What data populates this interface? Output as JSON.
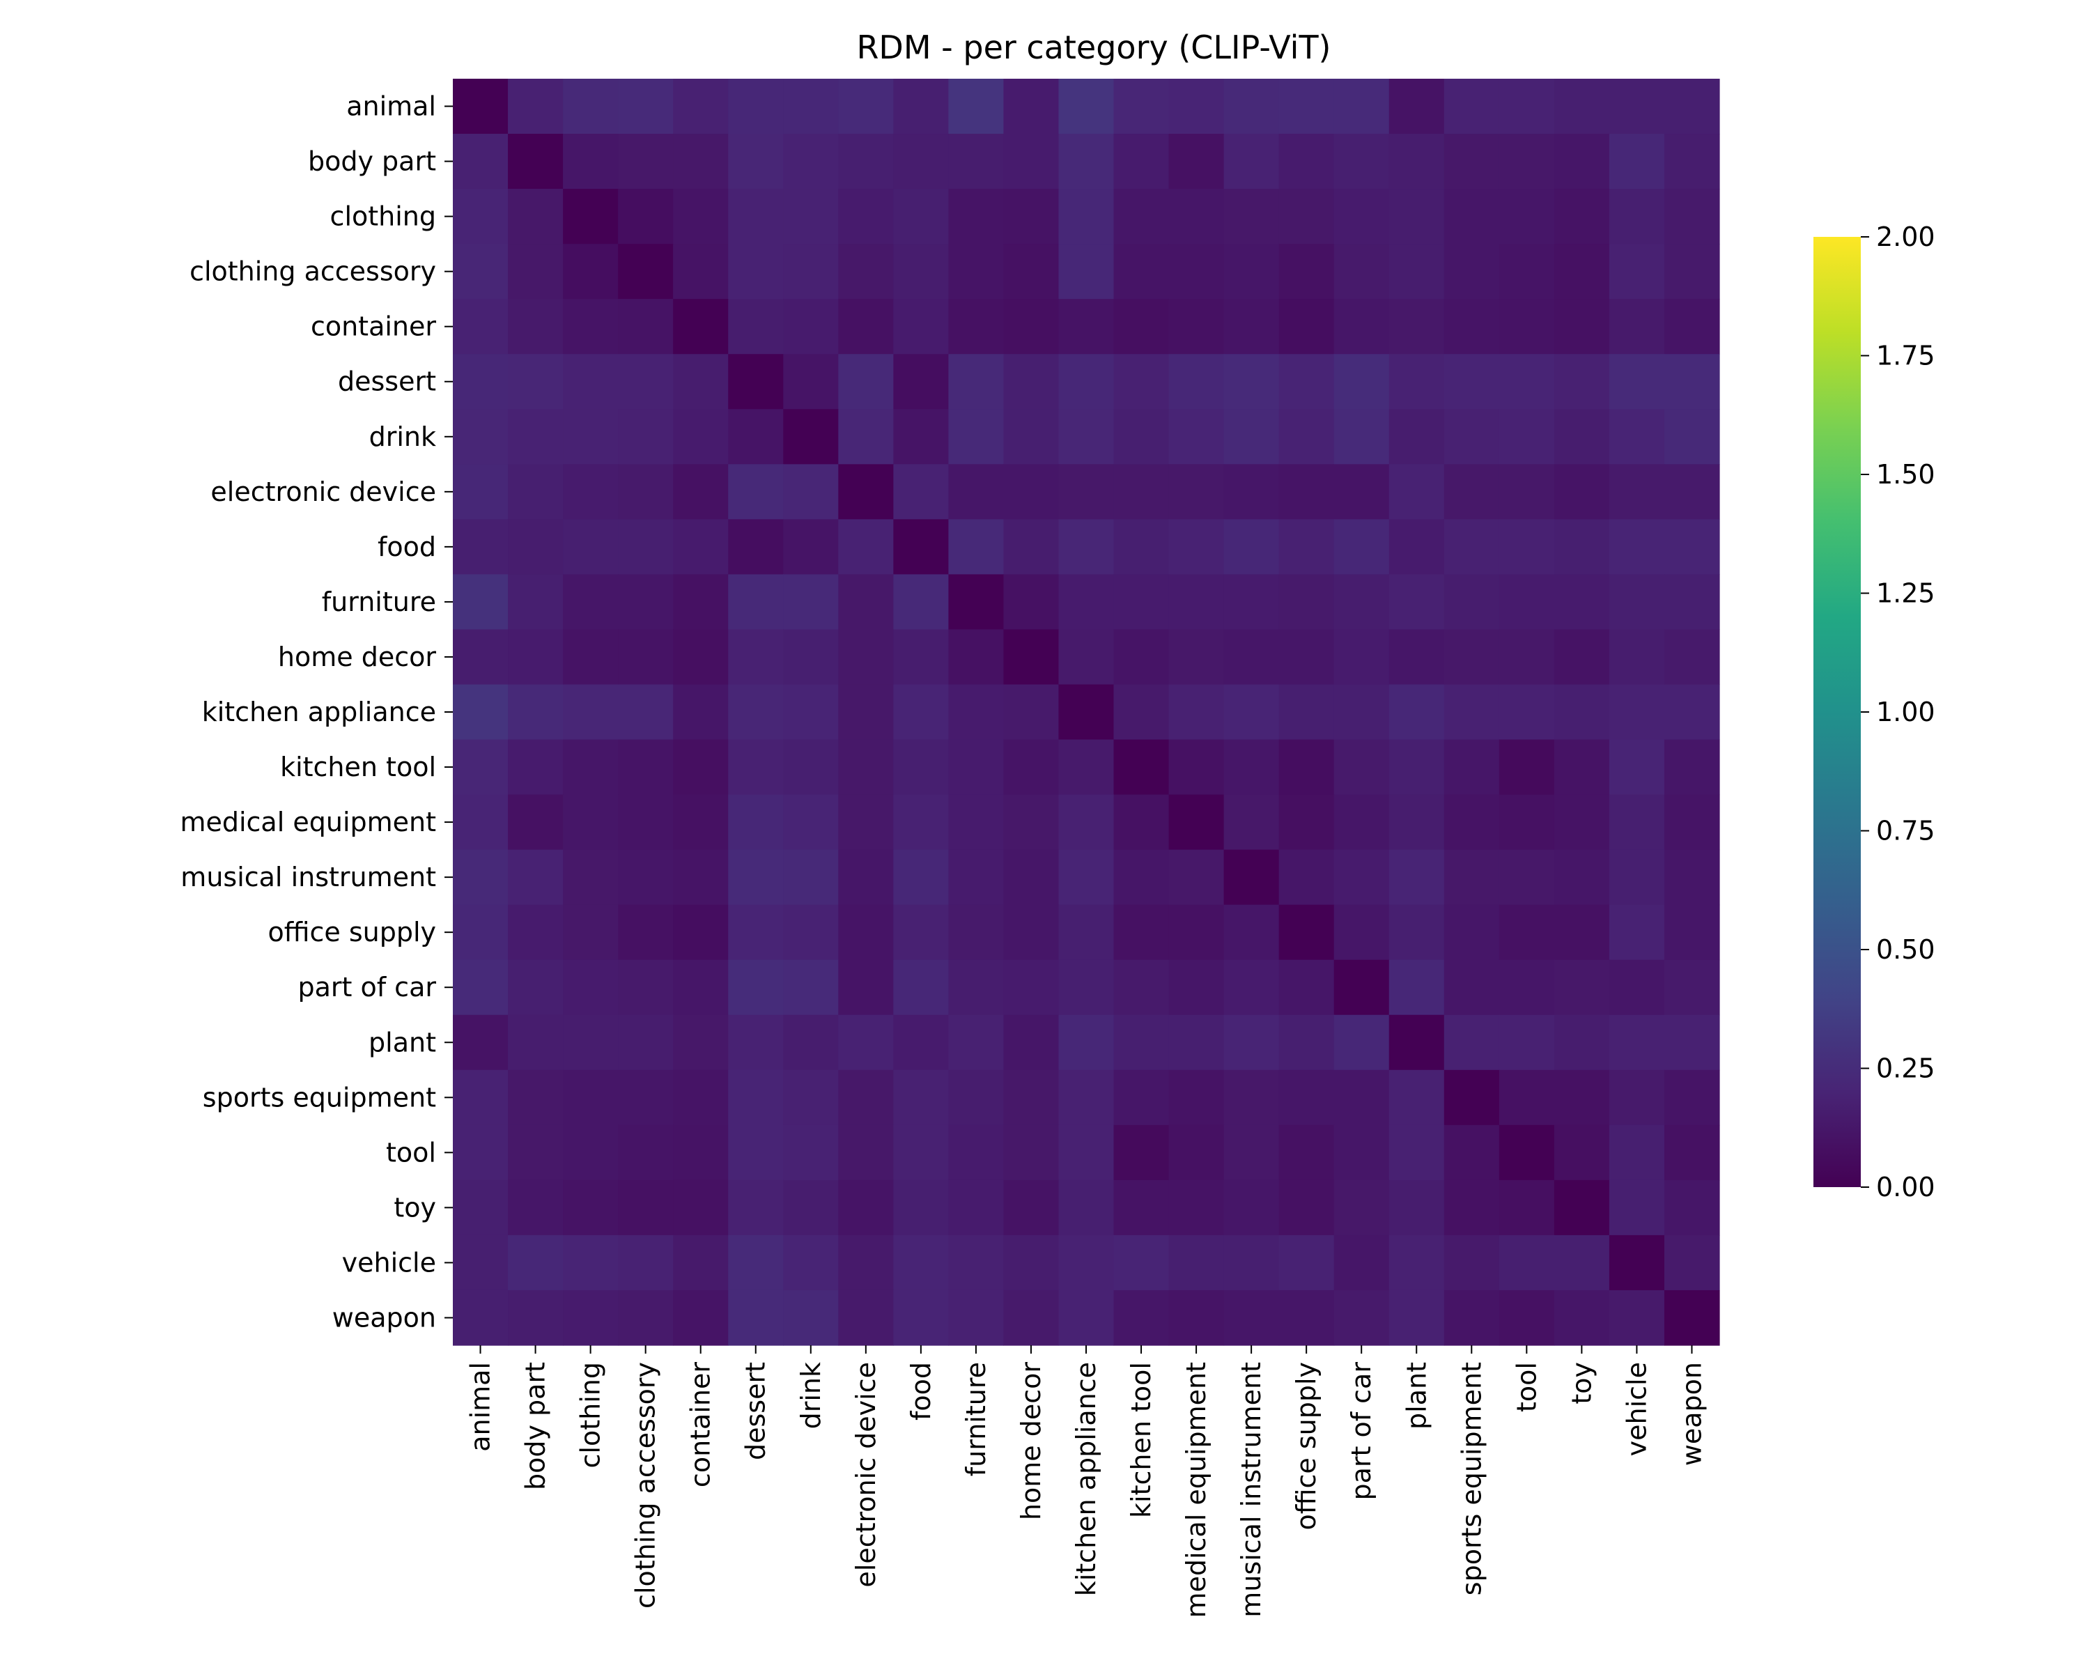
{
  "chart_data": {
    "type": "heatmap",
    "title": "RDM - per category (CLIP-ViT)",
    "xlabel": "",
    "ylabel": "",
    "colormap": "viridis",
    "vmin": 0.0,
    "vmax": 2.0,
    "colorbar_ticks": [
      "0.00",
      "0.25",
      "0.50",
      "0.75",
      "1.00",
      "1.25",
      "1.50",
      "1.75",
      "2.00"
    ],
    "categories": [
      "animal",
      "body part",
      "clothing",
      "clothing accessory",
      "container",
      "dessert",
      "drink",
      "electronic device",
      "food",
      "furniture",
      "home decor",
      "kitchen appliance",
      "kitchen tool",
      "medical equipment",
      "musical instrument",
      "office supply",
      "part of car",
      "plant",
      "sports equipment",
      "tool",
      "toy",
      "vehicle",
      "weapon"
    ],
    "matrix": [
      [
        0.0,
        0.18,
        0.23,
        0.24,
        0.18,
        0.22,
        0.22,
        0.24,
        0.17,
        0.3,
        0.15,
        0.3,
        0.21,
        0.2,
        0.23,
        0.24,
        0.24,
        0.1,
        0.19,
        0.19,
        0.17,
        0.17,
        0.17
      ],
      [
        0.18,
        0.0,
        0.12,
        0.13,
        0.13,
        0.21,
        0.19,
        0.17,
        0.16,
        0.16,
        0.15,
        0.23,
        0.15,
        0.09,
        0.19,
        0.15,
        0.17,
        0.16,
        0.13,
        0.13,
        0.12,
        0.22,
        0.16
      ],
      [
        0.2,
        0.13,
        0.0,
        0.07,
        0.11,
        0.19,
        0.19,
        0.15,
        0.17,
        0.11,
        0.1,
        0.22,
        0.12,
        0.12,
        0.13,
        0.13,
        0.15,
        0.16,
        0.12,
        0.12,
        0.1,
        0.17,
        0.14
      ],
      [
        0.21,
        0.13,
        0.07,
        0.0,
        0.1,
        0.19,
        0.18,
        0.13,
        0.16,
        0.11,
        0.09,
        0.22,
        0.11,
        0.11,
        0.12,
        0.09,
        0.14,
        0.16,
        0.12,
        0.11,
        0.09,
        0.18,
        0.14
      ],
      [
        0.19,
        0.14,
        0.11,
        0.1,
        0.0,
        0.16,
        0.15,
        0.09,
        0.15,
        0.09,
        0.08,
        0.1,
        0.08,
        0.09,
        0.11,
        0.07,
        0.12,
        0.13,
        0.11,
        0.1,
        0.09,
        0.14,
        0.11
      ],
      [
        0.22,
        0.21,
        0.19,
        0.19,
        0.16,
        0.0,
        0.11,
        0.23,
        0.07,
        0.23,
        0.17,
        0.22,
        0.18,
        0.22,
        0.24,
        0.2,
        0.25,
        0.19,
        0.2,
        0.2,
        0.18,
        0.24,
        0.24
      ],
      [
        0.21,
        0.19,
        0.19,
        0.18,
        0.15,
        0.11,
        0.0,
        0.21,
        0.11,
        0.23,
        0.17,
        0.21,
        0.17,
        0.2,
        0.23,
        0.19,
        0.24,
        0.16,
        0.18,
        0.19,
        0.16,
        0.2,
        0.23
      ],
      [
        0.22,
        0.17,
        0.15,
        0.14,
        0.09,
        0.23,
        0.21,
        0.0,
        0.19,
        0.12,
        0.12,
        0.13,
        0.13,
        0.13,
        0.12,
        0.11,
        0.11,
        0.19,
        0.13,
        0.13,
        0.11,
        0.14,
        0.14
      ],
      [
        0.17,
        0.16,
        0.17,
        0.17,
        0.15,
        0.07,
        0.11,
        0.19,
        0.0,
        0.23,
        0.16,
        0.21,
        0.17,
        0.19,
        0.22,
        0.18,
        0.22,
        0.15,
        0.18,
        0.18,
        0.17,
        0.2,
        0.2
      ],
      [
        0.28,
        0.17,
        0.12,
        0.12,
        0.09,
        0.23,
        0.23,
        0.13,
        0.23,
        0.0,
        0.09,
        0.15,
        0.15,
        0.15,
        0.15,
        0.14,
        0.16,
        0.18,
        0.16,
        0.15,
        0.15,
        0.17,
        0.17
      ],
      [
        0.16,
        0.15,
        0.1,
        0.1,
        0.08,
        0.18,
        0.17,
        0.13,
        0.16,
        0.09,
        0.0,
        0.14,
        0.11,
        0.13,
        0.12,
        0.12,
        0.15,
        0.12,
        0.13,
        0.13,
        0.1,
        0.16,
        0.14
      ],
      [
        0.3,
        0.23,
        0.21,
        0.21,
        0.12,
        0.21,
        0.2,
        0.13,
        0.2,
        0.15,
        0.14,
        0.0,
        0.14,
        0.18,
        0.2,
        0.17,
        0.17,
        0.22,
        0.18,
        0.18,
        0.17,
        0.19,
        0.19
      ],
      [
        0.21,
        0.15,
        0.12,
        0.11,
        0.08,
        0.18,
        0.17,
        0.13,
        0.17,
        0.15,
        0.11,
        0.14,
        0.0,
        0.09,
        0.12,
        0.07,
        0.14,
        0.17,
        0.12,
        0.05,
        0.1,
        0.2,
        0.12
      ],
      [
        0.2,
        0.09,
        0.12,
        0.11,
        0.09,
        0.22,
        0.2,
        0.13,
        0.19,
        0.15,
        0.13,
        0.18,
        0.09,
        0.0,
        0.13,
        0.08,
        0.12,
        0.16,
        0.1,
        0.09,
        0.1,
        0.17,
        0.11
      ],
      [
        0.23,
        0.19,
        0.13,
        0.12,
        0.11,
        0.24,
        0.23,
        0.12,
        0.22,
        0.15,
        0.12,
        0.2,
        0.12,
        0.13,
        0.0,
        0.12,
        0.15,
        0.2,
        0.13,
        0.13,
        0.12,
        0.17,
        0.12
      ],
      [
        0.22,
        0.15,
        0.13,
        0.09,
        0.07,
        0.2,
        0.19,
        0.11,
        0.18,
        0.14,
        0.12,
        0.17,
        0.09,
        0.09,
        0.12,
        0.0,
        0.12,
        0.17,
        0.12,
        0.09,
        0.09,
        0.19,
        0.12
      ],
      [
        0.24,
        0.17,
        0.15,
        0.14,
        0.12,
        0.25,
        0.24,
        0.11,
        0.22,
        0.16,
        0.15,
        0.17,
        0.14,
        0.12,
        0.15,
        0.12,
        0.0,
        0.22,
        0.12,
        0.12,
        0.13,
        0.12,
        0.14
      ],
      [
        0.1,
        0.16,
        0.16,
        0.16,
        0.13,
        0.19,
        0.16,
        0.19,
        0.15,
        0.18,
        0.12,
        0.22,
        0.17,
        0.17,
        0.2,
        0.17,
        0.22,
        0.0,
        0.18,
        0.18,
        0.16,
        0.18,
        0.18
      ],
      [
        0.19,
        0.13,
        0.12,
        0.12,
        0.11,
        0.2,
        0.18,
        0.13,
        0.18,
        0.16,
        0.13,
        0.18,
        0.12,
        0.1,
        0.13,
        0.12,
        0.12,
        0.18,
        0.0,
        0.09,
        0.09,
        0.14,
        0.11
      ],
      [
        0.19,
        0.13,
        0.12,
        0.11,
        0.1,
        0.2,
        0.19,
        0.13,
        0.18,
        0.15,
        0.13,
        0.18,
        0.05,
        0.09,
        0.13,
        0.09,
        0.12,
        0.18,
        0.09,
        0.0,
        0.08,
        0.17,
        0.09
      ],
      [
        0.17,
        0.12,
        0.1,
        0.09,
        0.09,
        0.18,
        0.16,
        0.11,
        0.17,
        0.15,
        0.1,
        0.17,
        0.1,
        0.1,
        0.12,
        0.09,
        0.13,
        0.16,
        0.09,
        0.08,
        0.0,
        0.17,
        0.12
      ],
      [
        0.17,
        0.22,
        0.2,
        0.19,
        0.14,
        0.24,
        0.2,
        0.14,
        0.2,
        0.18,
        0.16,
        0.19,
        0.2,
        0.17,
        0.17,
        0.19,
        0.12,
        0.18,
        0.14,
        0.17,
        0.17,
        0.0,
        0.14
      ],
      [
        0.17,
        0.16,
        0.15,
        0.14,
        0.11,
        0.24,
        0.23,
        0.14,
        0.2,
        0.18,
        0.14,
        0.19,
        0.12,
        0.11,
        0.12,
        0.12,
        0.14,
        0.18,
        0.11,
        0.09,
        0.12,
        0.14,
        0.0
      ]
    ]
  }
}
